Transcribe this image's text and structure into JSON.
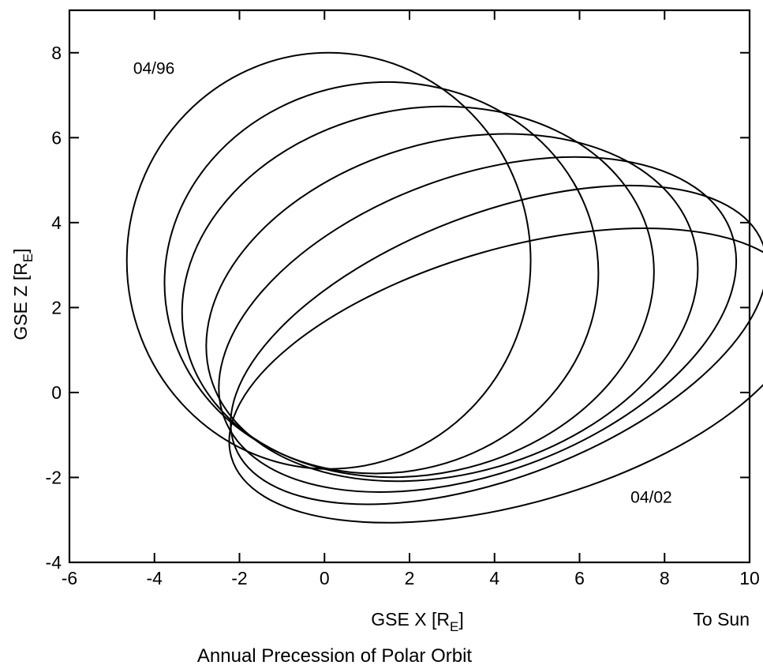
{
  "chart_data": {
    "type": "line",
    "title": "Annual Precession of Polar Orbit",
    "xlabel": "GSE X [R",
    "xlabel_sub": "E",
    "xlabel_close": "]",
    "ylabel": "GSE Z [R",
    "ylabel_sub": "E",
    "ylabel_close": "]",
    "x_note": "To Sun",
    "xlim": [
      -6,
      10
    ],
    "ylim": [
      -4,
      9
    ],
    "x_ticks": [
      -6,
      -4,
      -2,
      0,
      2,
      4,
      6,
      8,
      10
    ],
    "y_ticks": [
      -4,
      -2,
      0,
      2,
      4,
      6,
      8
    ],
    "x_tick_labels": [
      "-6",
      "-4",
      "-2",
      "0",
      "2",
      "4",
      "6",
      "8",
      "10"
    ],
    "y_tick_labels": [
      "-4",
      "-2",
      "0",
      "2",
      "4",
      "6",
      "8"
    ],
    "grid": false,
    "annotations": [
      {
        "text": "04/96",
        "x": -4.5,
        "y": 7.5
      },
      {
        "text": "04/02",
        "x": 7.2,
        "y": -2.6
      }
    ],
    "series": [
      {
        "cx": 0.1,
        "cy": 3.1,
        "a": 4.75,
        "b": 4.9,
        "angle_deg": 0
      },
      {
        "cx": 1.34,
        "cy": 2.7,
        "a": 5.11,
        "b": 4.6,
        "angle_deg": -7
      },
      {
        "cx": 2.2,
        "cy": 2.37,
        "a": 5.6,
        "b": 4.3,
        "angle_deg": -12
      },
      {
        "cx": 3.0,
        "cy": 2.0,
        "a": 5.91,
        "b": 3.9,
        "angle_deg": -16
      },
      {
        "cx": 3.6,
        "cy": 1.6,
        "a": 6.35,
        "b": 3.5,
        "angle_deg": -20
      },
      {
        "cx": 4.1,
        "cy": 1.12,
        "a": 6.65,
        "b": 3.1,
        "angle_deg": -21
      },
      {
        "cx": 4.5,
        "cy": 0.4,
        "a": 6.96,
        "b": 3.0,
        "angle_deg": -16
      }
    ]
  }
}
